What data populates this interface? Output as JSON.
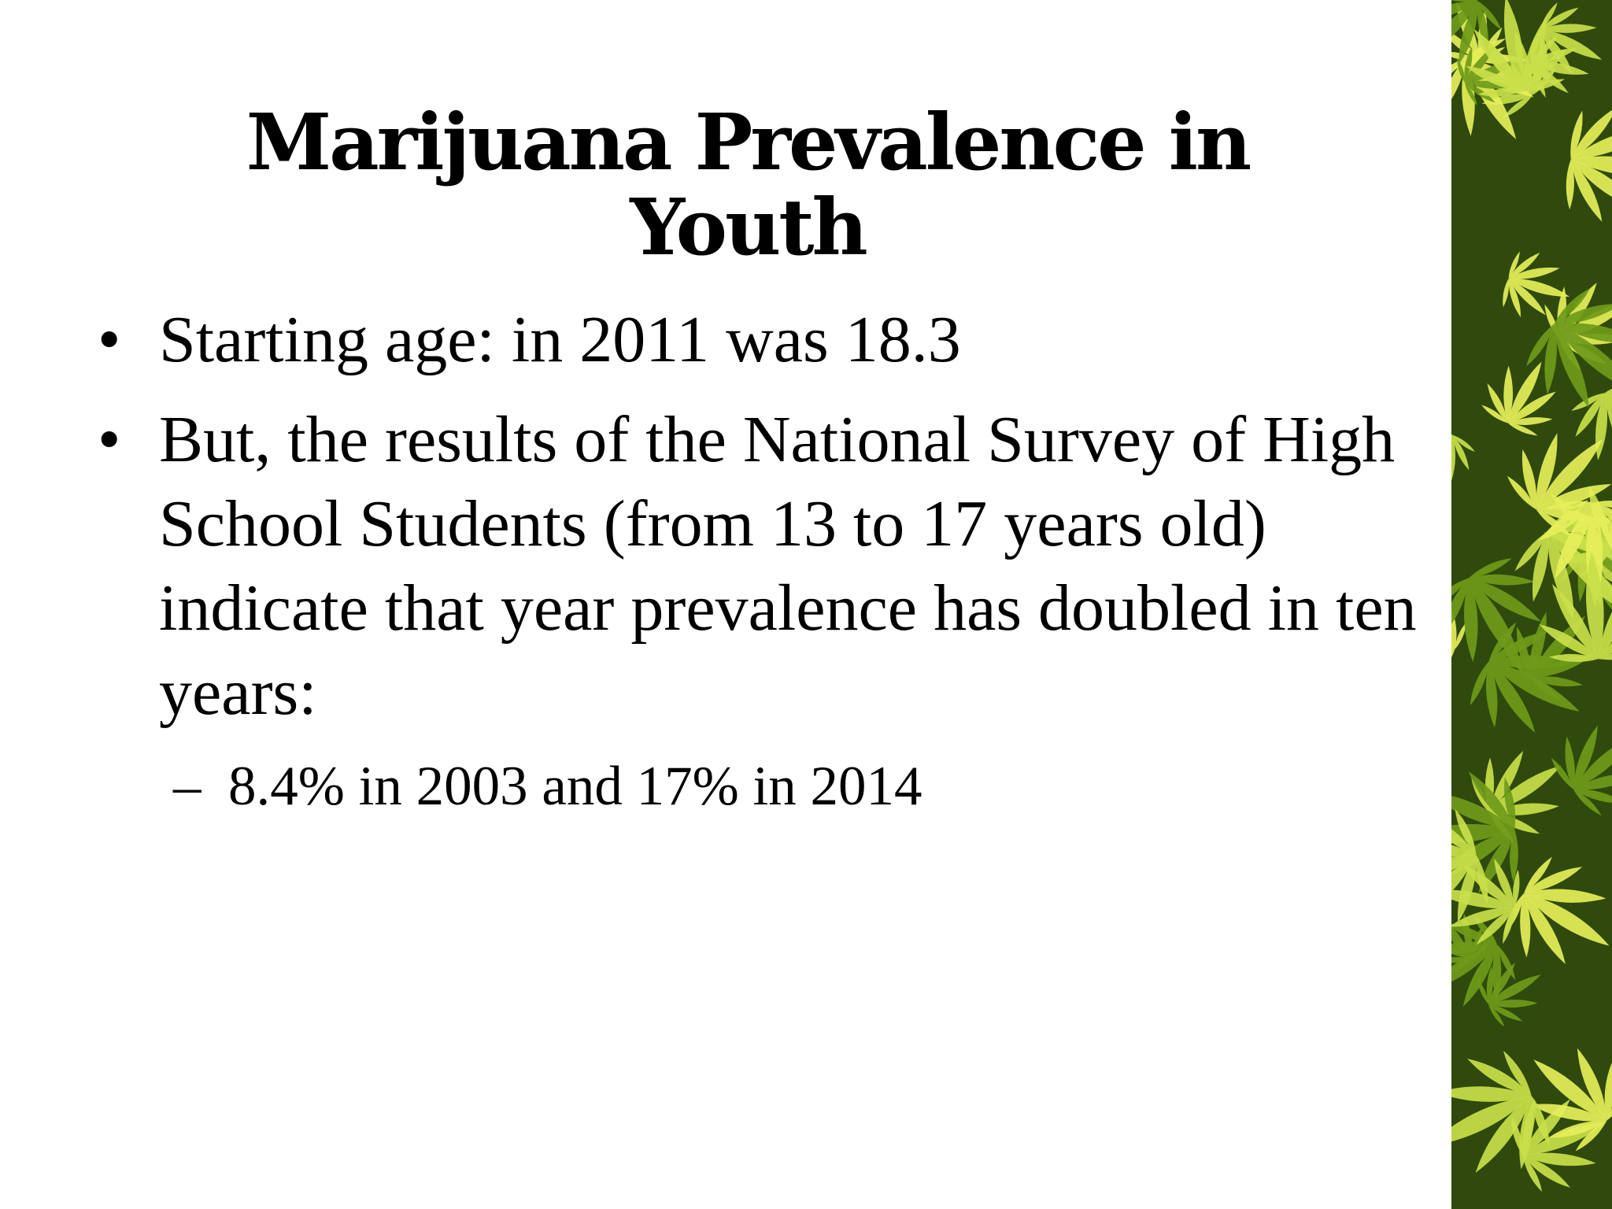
{
  "slide": {
    "title": "Marijuana Prevalence in Youth",
    "bullets": [
      {
        "text": "Starting age: in 2011 was 18.3"
      },
      {
        "text": "But, the results of the National Survey of High School Students (from 13 to 17 years old) indicate that year prevalence has doubled in ten years:"
      }
    ],
    "sub_bullets": [
      {
        "text": "8.4% in 2003 and 17% in 2014"
      }
    ],
    "bullet_glyph": "•",
    "sub_bullet_glyph": "–",
    "decoration": {
      "icon": "cannabis-leaves-image",
      "colors": {
        "dark_green": "#2f4a0c",
        "mid_green": "#6f9a1a",
        "light_green": "#c9e04a",
        "yellow": "#e6ef5a"
      }
    }
  }
}
